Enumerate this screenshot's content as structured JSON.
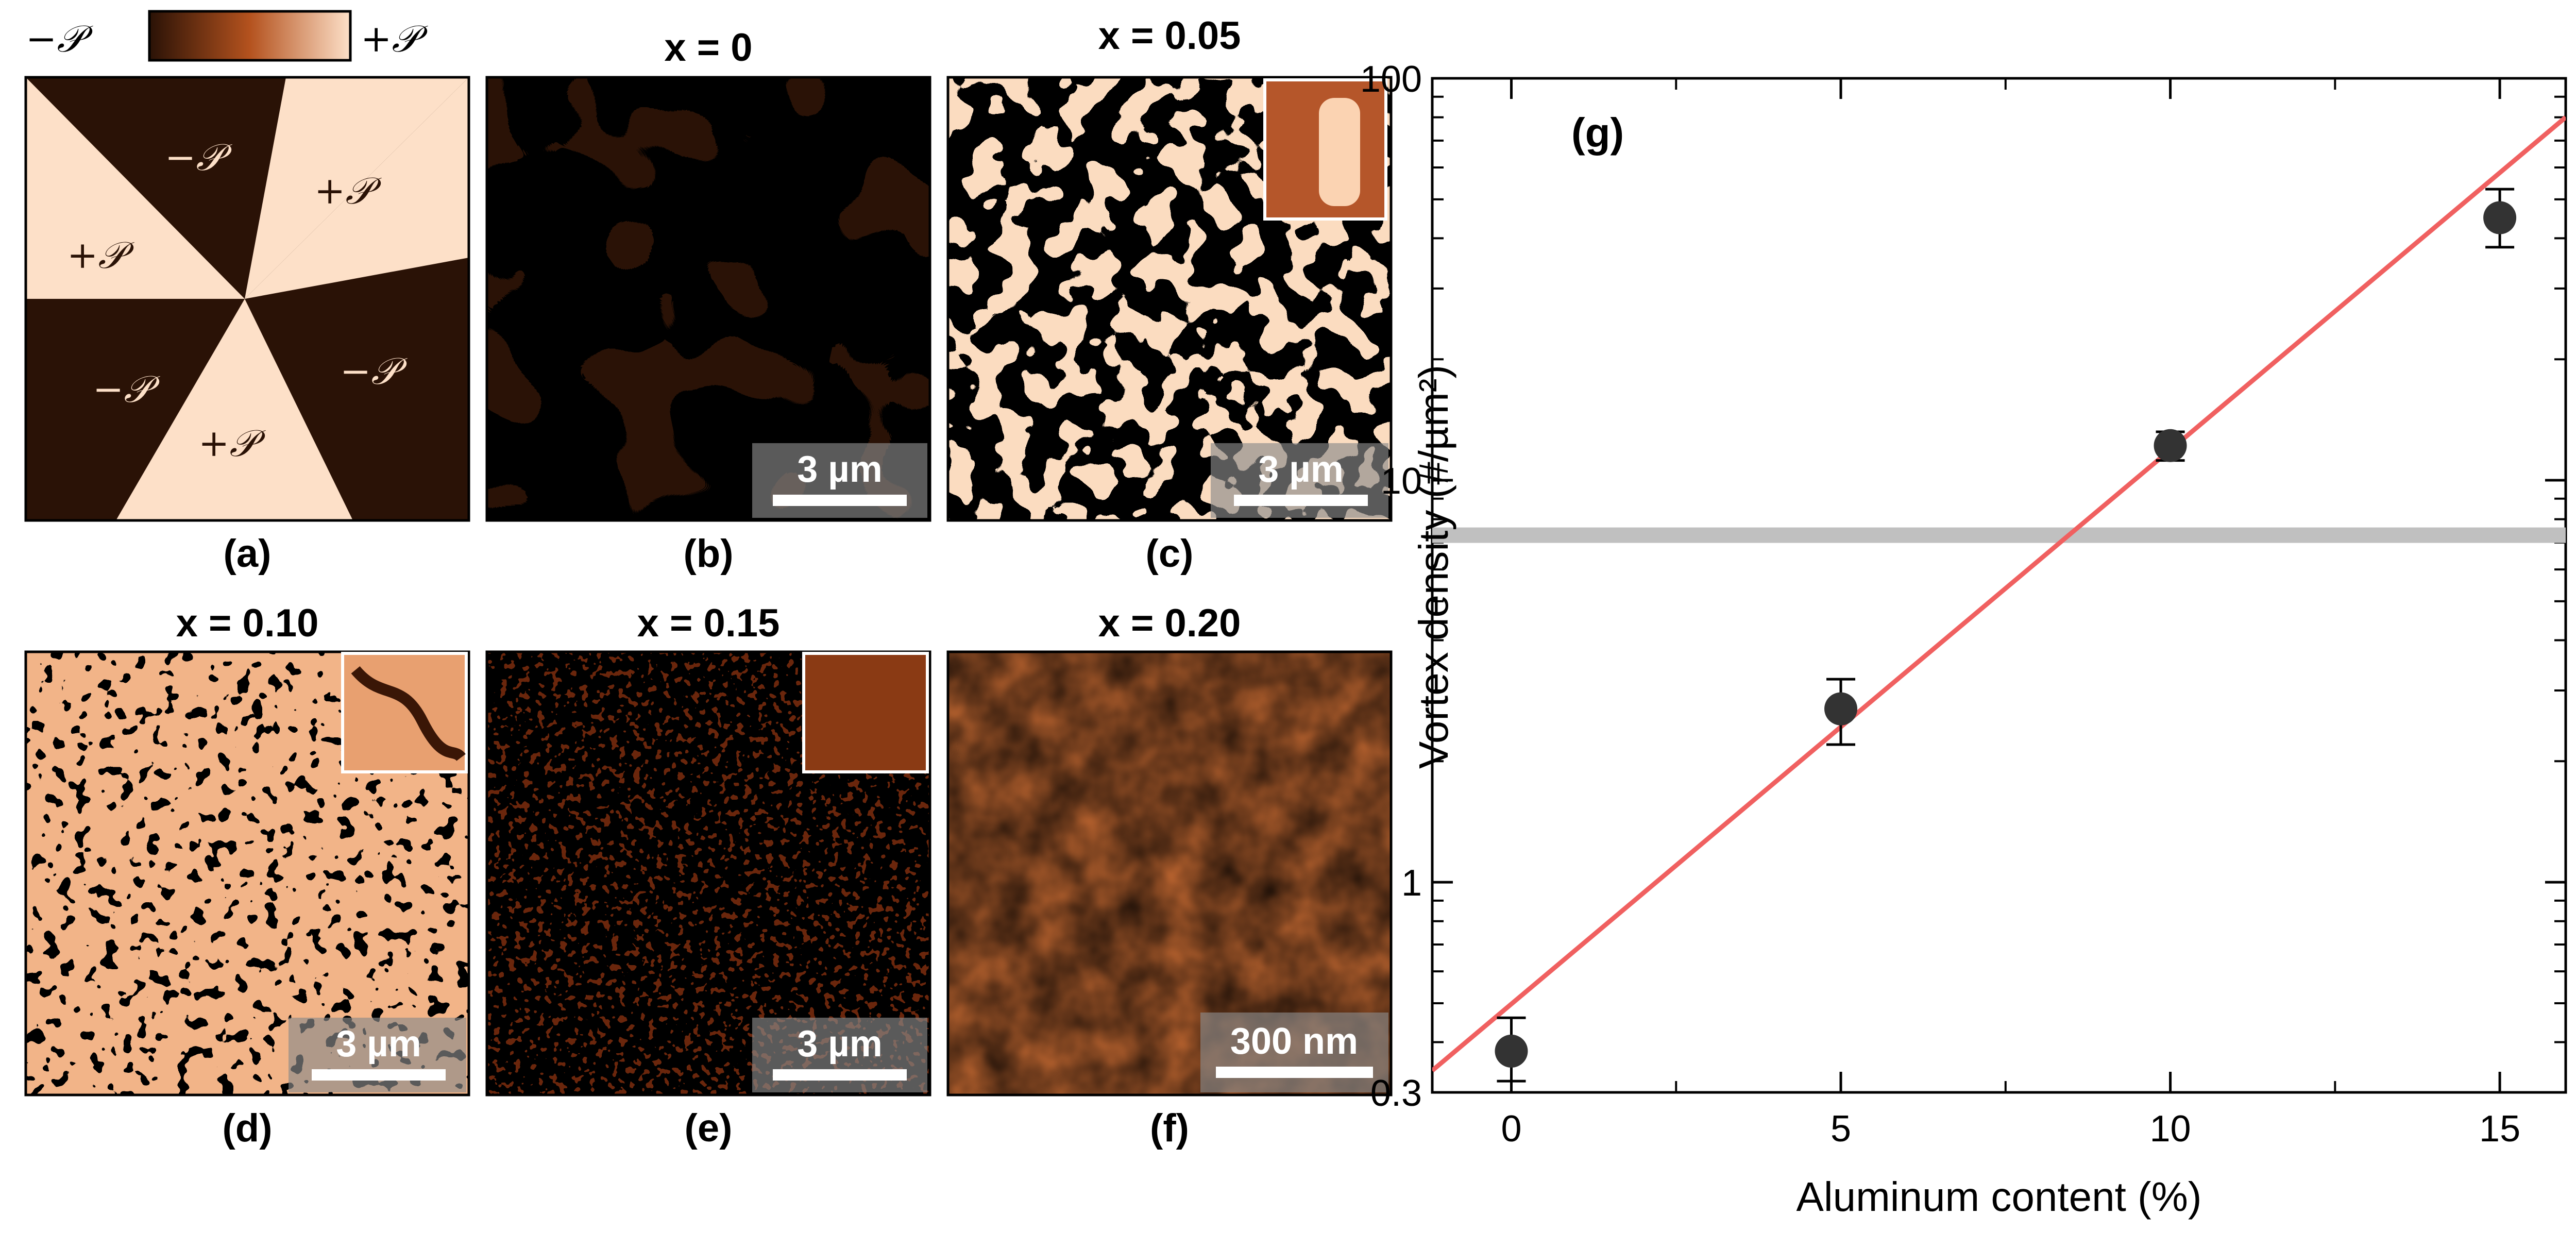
{
  "colorbar": {
    "neg_label": "−𝒫",
    "pos_label": "+𝒫",
    "dark": "#2a1206",
    "mid": "#b4521e",
    "light": "#fde0c8"
  },
  "panels": {
    "a": {
      "caption": "(a)",
      "labels": [
        "−𝒫",
        "+𝒫",
        "+𝒫",
        "−𝒫",
        "+𝒫",
        "−𝒫"
      ]
    },
    "b": {
      "title": "x = 0",
      "caption": "(b)",
      "scalebar": "3 µm"
    },
    "c": {
      "title": "x = 0.05",
      "caption": "(c)",
      "scalebar": "3 µm"
    },
    "d": {
      "title": "x = 0.10",
      "caption": "(d)",
      "scalebar": "3 µm"
    },
    "e": {
      "title": "x = 0.15",
      "caption": "(e)",
      "scalebar": "3 µm"
    },
    "f": {
      "title": "x = 0.20",
      "caption": "(f)",
      "scalebar": "300 nm"
    }
  },
  "chart_data": {
    "type": "scatter",
    "panel_label": "(g)",
    "xlabel": "Aluminum content (%)",
    "ylabel": "Vortex density (#/µm²)",
    "xlim": [
      -1.2,
      16
    ],
    "ylim": [
      0.3,
      100
    ],
    "yscale": "log",
    "xticks": [
      0,
      5,
      10,
      15
    ],
    "yticks": [
      0.3,
      1,
      10,
      100
    ],
    "ytick_labels": [
      "0.3",
      "1",
      "10",
      "100"
    ],
    "points": [
      {
        "x": 0,
        "y": 0.38,
        "y_low": 0.32,
        "y_high": 0.46
      },
      {
        "x": 5,
        "y": 2.7,
        "y_low": 2.2,
        "y_high": 3.2
      },
      {
        "x": 10,
        "y": 12.2,
        "y_low": 11.2,
        "y_high": 13.2
      },
      {
        "x": 15,
        "y": 45,
        "y_low": 38,
        "y_high": 53
      }
    ],
    "fit_line": {
      "x": [
        -1.2,
        16
      ],
      "y": [
        0.34,
        80
      ],
      "color": "#f06060"
    },
    "hline": {
      "y": 7.3,
      "color": "#c0c0c0"
    },
    "marker_color": "#333333",
    "grid": false
  }
}
